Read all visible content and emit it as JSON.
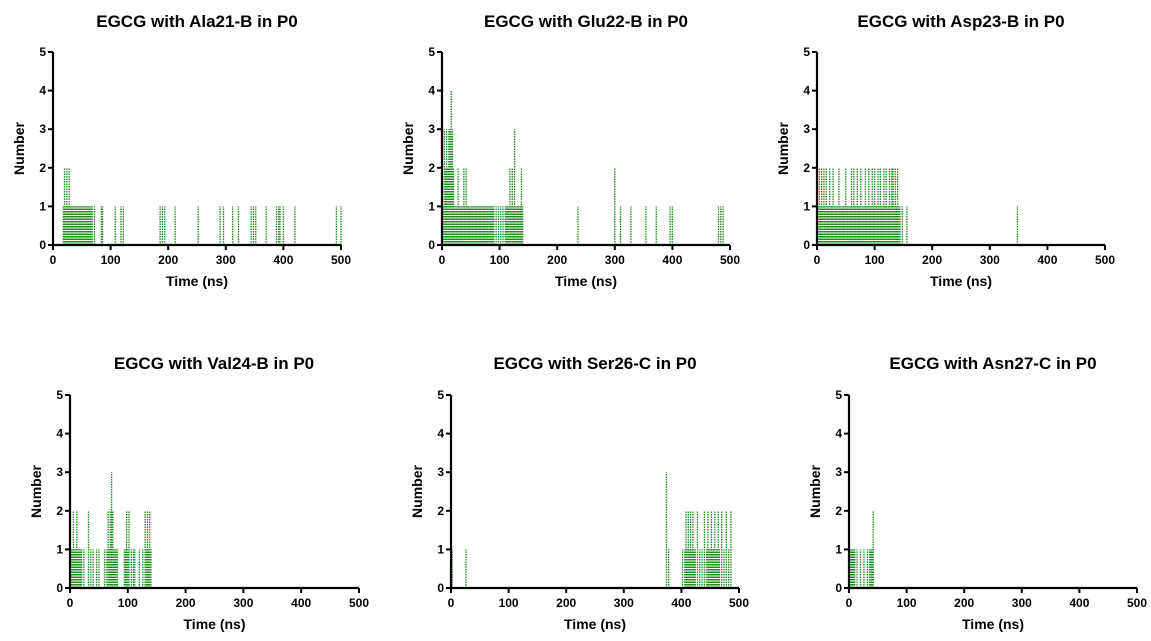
{
  "figure": {
    "bar_color": "#1a8a1a"
  },
  "chart_data": [
    {
      "type": "bar",
      "title": "EGCG with Ala21-B in P0",
      "xlabel": "Time (ns)",
      "ylabel": "Number",
      "xlim": [
        0,
        500
      ],
      "ylim": [
        0,
        5
      ],
      "xticks": [
        0,
        100,
        200,
        300,
        400,
        500
      ],
      "yticks": [
        0,
        1,
        2,
        3,
        4,
        5
      ],
      "x": [
        18,
        20,
        22,
        24,
        26,
        28,
        30,
        32,
        34,
        36,
        38,
        40,
        42,
        44,
        46,
        48,
        50,
        52,
        54,
        56,
        58,
        60,
        62,
        64,
        66,
        68,
        72,
        84,
        86,
        108,
        118,
        122,
        186,
        190,
        194,
        212,
        252,
        290,
        296,
        312,
        322,
        344,
        348,
        352,
        370,
        388,
        392,
        394,
        400,
        420,
        492,
        500
      ],
      "values": [
        1,
        2,
        1,
        2,
        1,
        2,
        1,
        1,
        1,
        1,
        1,
        1,
        1,
        1,
        1,
        1,
        1,
        1,
        1,
        1,
        1,
        1,
        1,
        1,
        1,
        1,
        1,
        1,
        1,
        1,
        1,
        1,
        1,
        1,
        1,
        1,
        1,
        1,
        1,
        1,
        1,
        1,
        1,
        1,
        1,
        1,
        1,
        1,
        1,
        1,
        1,
        1
      ]
    },
    {
      "type": "bar",
      "title": "EGCG with Glu22-B in P0",
      "xlabel": "Time (ns)",
      "ylabel": "Number",
      "xlim": [
        0,
        500
      ],
      "ylim": [
        0,
        5
      ],
      "xticks": [
        0,
        100,
        200,
        300,
        400,
        500
      ],
      "yticks": [
        0,
        1,
        2,
        3,
        4,
        5
      ],
      "x": [
        2,
        4,
        6,
        8,
        10,
        12,
        14,
        16,
        18,
        20,
        22,
        24,
        26,
        28,
        30,
        32,
        34,
        36,
        38,
        40,
        42,
        44,
        46,
        48,
        50,
        52,
        54,
        56,
        58,
        60,
        62,
        64,
        66,
        68,
        70,
        72,
        74,
        76,
        78,
        80,
        82,
        84,
        86,
        88,
        90,
        94,
        98,
        102,
        106,
        110,
        112,
        114,
        116,
        118,
        120,
        122,
        124,
        126,
        128,
        130,
        132,
        134,
        136,
        138,
        140,
        236,
        300,
        310,
        328,
        354,
        372,
        396,
        400,
        480,
        484,
        488
      ],
      "values": [
        1,
        3,
        2,
        3,
        2,
        3,
        3,
        4,
        3,
        2,
        1,
        1,
        1,
        2,
        1,
        1,
        1,
        1,
        2,
        1,
        2,
        1,
        1,
        1,
        1,
        1,
        1,
        1,
        1,
        1,
        1,
        1,
        1,
        1,
        1,
        1,
        1,
        1,
        1,
        1,
        1,
        1,
        1,
        1,
        1,
        1,
        1,
        1,
        1,
        1,
        1,
        1,
        1,
        2,
        1,
        2,
        1,
        3,
        1,
        1,
        1,
        1,
        1,
        2,
        1,
        1,
        2,
        1,
        1,
        1,
        1,
        1,
        1,
        1,
        1,
        1
      ]
    },
    {
      "type": "bar",
      "title": "EGCG with Asp23-B in P0",
      "xlabel": "Time (ns)",
      "ylabel": "Number",
      "xlim": [
        0,
        500
      ],
      "ylim": [
        0,
        5
      ],
      "xticks": [
        0,
        100,
        200,
        300,
        400,
        500
      ],
      "yticks": [
        0,
        1,
        2,
        3,
        4,
        5
      ],
      "x": [
        2,
        4,
        6,
        8,
        10,
        12,
        14,
        16,
        18,
        20,
        22,
        24,
        26,
        28,
        30,
        32,
        34,
        36,
        38,
        40,
        42,
        44,
        46,
        48,
        50,
        52,
        54,
        56,
        58,
        60,
        62,
        64,
        66,
        68,
        70,
        72,
        74,
        76,
        78,
        80,
        82,
        84,
        86,
        88,
        90,
        92,
        94,
        96,
        98,
        100,
        102,
        104,
        106,
        108,
        110,
        112,
        114,
        116,
        118,
        120,
        122,
        124,
        126,
        128,
        130,
        132,
        134,
        136,
        138,
        140,
        142,
        144,
        148,
        156,
        348
      ],
      "values": [
        1,
        2,
        1,
        2,
        1,
        2,
        1,
        2,
        1,
        1,
        2,
        1,
        1,
        2,
        1,
        1,
        1,
        1,
        2,
        1,
        1,
        1,
        1,
        1,
        2,
        1,
        1,
        1,
        1,
        2,
        1,
        2,
        1,
        1,
        2,
        1,
        1,
        2,
        1,
        1,
        1,
        2,
        1,
        1,
        2,
        1,
        1,
        2,
        1,
        2,
        1,
        1,
        2,
        1,
        2,
        1,
        1,
        2,
        1,
        2,
        1,
        1,
        2,
        1,
        2,
        2,
        1,
        2,
        1,
        2,
        1,
        1,
        1,
        1,
        1
      ]
    },
    {
      "type": "bar",
      "title": "EGCG with Val24-B in P0",
      "xlabel": "Time (ns)",
      "ylabel": "Number",
      "xlim": [
        0,
        500
      ],
      "ylim": [
        0,
        5
      ],
      "xticks": [
        0,
        100,
        200,
        300,
        400,
        500
      ],
      "yticks": [
        0,
        1,
        2,
        3,
        4,
        5
      ],
      "x": [
        2,
        4,
        6,
        8,
        10,
        12,
        14,
        16,
        18,
        20,
        24,
        32,
        36,
        40,
        46,
        50,
        60,
        64,
        66,
        68,
        70,
        72,
        74,
        76,
        78,
        80,
        82,
        94,
        96,
        98,
        100,
        102,
        106,
        110,
        112,
        120,
        126,
        130,
        132,
        134,
        136,
        138,
        140
      ],
      "values": [
        1,
        1,
        2,
        1,
        1,
        2,
        1,
        1,
        1,
        1,
        1,
        2,
        1,
        1,
        1,
        1,
        1,
        1,
        2,
        1,
        2,
        3,
        2,
        1,
        1,
        1,
        1,
        1,
        1,
        2,
        1,
        2,
        1,
        1,
        1,
        1,
        1,
        2,
        1,
        2,
        1,
        2,
        1
      ]
    },
    {
      "type": "bar",
      "title": "EGCG with Ser26-C in P0",
      "xlabel": "Time (ns)",
      "ylabel": "Number",
      "xlim": [
        0,
        500
      ],
      "ylim": [
        0,
        5
      ],
      "xticks": [
        0,
        100,
        200,
        300,
        400,
        500
      ],
      "yticks": [
        0,
        1,
        2,
        3,
        4,
        5
      ],
      "x": [
        2,
        26,
        374,
        378,
        402,
        406,
        408,
        410,
        412,
        414,
        416,
        418,
        420,
        422,
        424,
        428,
        432,
        436,
        440,
        444,
        446,
        448,
        450,
        452,
        454,
        456,
        458,
        460,
        462,
        464,
        466,
        470,
        474,
        478,
        482,
        486
      ],
      "values": [
        1,
        1,
        3,
        1,
        1,
        1,
        2,
        1,
        2,
        1,
        2,
        1,
        2,
        1,
        1,
        2,
        1,
        1,
        2,
        1,
        2,
        1,
        1,
        2,
        1,
        1,
        2,
        1,
        1,
        2,
        1,
        2,
        1,
        2,
        1,
        2
      ]
    },
    {
      "type": "bar",
      "title": "EGCG with Asn27-C in P0",
      "xlabel": "Time (ns)",
      "ylabel": "Number",
      "xlim": [
        0,
        500
      ],
      "ylim": [
        0,
        5
      ],
      "xticks": [
        0,
        100,
        200,
        300,
        400,
        500
      ],
      "yticks": [
        0,
        1,
        2,
        3,
        4,
        5
      ],
      "x": [
        2,
        4,
        6,
        8,
        10,
        14,
        20,
        26,
        32,
        36,
        38,
        40,
        42
      ],
      "values": [
        1,
        1,
        1,
        1,
        1,
        1,
        1,
        1,
        1,
        1,
        1,
        1,
        2
      ]
    }
  ]
}
